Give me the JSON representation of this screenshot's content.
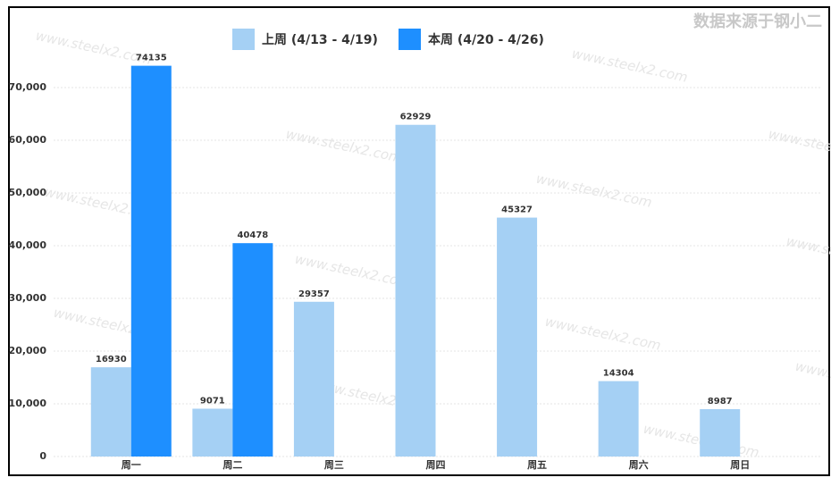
{
  "chart_data": {
    "type": "bar",
    "source": "数据来源于钢小二",
    "watermark": "www.steelx2.com",
    "categories": [
      "周一",
      "周二",
      "周三",
      "周四",
      "周五",
      "周六",
      "周日"
    ],
    "series": [
      {
        "name": "上周 (4/13 - 4/19)",
        "color": "#a5d0f4",
        "values": [
          16930,
          9071,
          29357,
          62929,
          45327,
          14304,
          8987
        ]
      },
      {
        "name": "本周 (4/20 - 4/26)",
        "color": "#1e8fff",
        "values": [
          74135,
          40478,
          null,
          null,
          null,
          null,
          null
        ]
      }
    ],
    "ylim": [
      0,
      80000
    ],
    "yticks": [
      0,
      {
        "value": 10000,
        "label": "10,000"
      },
      {
        "value": 20000,
        "label": "20,000"
      },
      {
        "value": 30000,
        "label": "30,000"
      },
      {
        "value": 40000,
        "label": "40,000"
      },
      {
        "value": 50000,
        "label": "50,000"
      },
      {
        "value": 60000,
        "label": "60,000"
      },
      {
        "value": 70000,
        "label": "70,000"
      }
    ],
    "grid": true
  }
}
